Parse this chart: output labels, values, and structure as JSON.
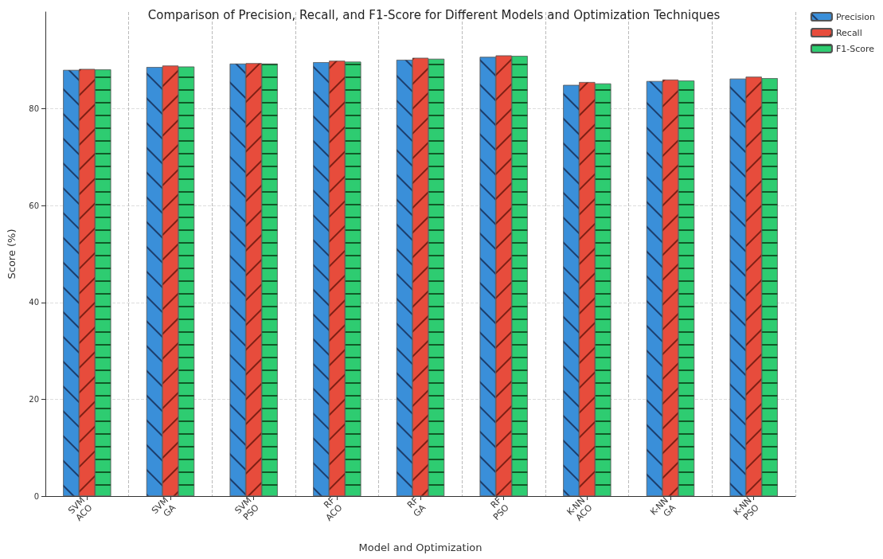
{
  "chart_data": {
    "type": "bar",
    "title": "Comparison of Precision, Recall, and F1-Score for Different Models and Optimization Techniques",
    "xlabel": "Model and Optimization",
    "ylabel": "Score (%)",
    "categories": [
      "SVM\nACO",
      "SVM\nGA",
      "SVM\nPSO",
      "RF\nACO",
      "RF\nGA",
      "RF\nPSO",
      "K-NN\nACO",
      "K-NN\nGA",
      "K-NN\nPSO"
    ],
    "series": [
      {
        "name": "Precision",
        "color": "#3a8fd9",
        "values": [
          88.0,
          88.6,
          89.3,
          89.6,
          90.1,
          90.7,
          84.9,
          85.7,
          86.2
        ]
      },
      {
        "name": "Recall",
        "color": "#e74c3c",
        "values": [
          88.2,
          88.9,
          89.4,
          89.9,
          90.5,
          91.0,
          85.5,
          86.0,
          86.6
        ]
      },
      {
        "name": "F1-Score",
        "color": "#2ecc71",
        "values": [
          88.1,
          88.7,
          89.3,
          89.7,
          90.3,
          90.9,
          85.2,
          85.8,
          86.3
        ]
      }
    ],
    "ylim": [
      0,
      100
    ],
    "yticks": [
      0,
      20,
      40,
      60,
      80
    ],
    "grid": true,
    "legend": "top right"
  }
}
